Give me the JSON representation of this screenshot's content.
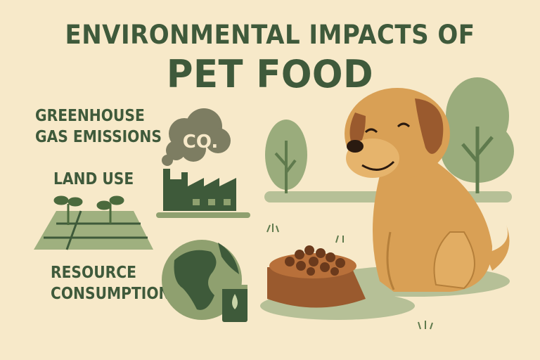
{
  "title": {
    "line1": "ENVIRONMENTAL IMPACTS OF",
    "line2": "PET FOOD"
  },
  "impacts": [
    {
      "label_line1": "GREENHOUSE",
      "label_line2": "GAS EMISSIONS",
      "icon": "factory-co2-icon"
    },
    {
      "label_line1": "LAND USE",
      "label_line2": "",
      "icon": "farmland-sprouts-icon"
    },
    {
      "label_line1": "RESOURCE",
      "label_line2": "CONSUMPTION",
      "icon": "globe-oil-can-icon"
    }
  ],
  "cloud_text": "CO.",
  "colors": {
    "background": "#f7e9c9",
    "text": "#3f5a3b",
    "dark_green": "#3e5a3a",
    "sage": "#8fa06f",
    "dog": "#d9a055",
    "bowl": "#9a5a2e"
  }
}
